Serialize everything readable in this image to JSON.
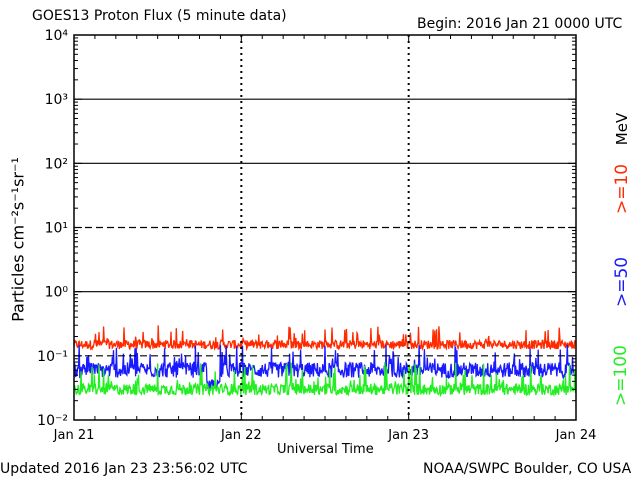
{
  "chart_data": {
    "type": "line",
    "title": "GOES13 Proton Flux (5 minute data)",
    "begin_label": "Begin: 2016 Jan 21 0000 UTC",
    "ylabel": "Particles cm⁻²s⁻¹sr⁻¹",
    "xlabel": "Universal Time",
    "unit_label": "MeV",
    "yscale": "log",
    "ylim": [
      0.01,
      10000
    ],
    "y_ticks": [
      "10⁻²",
      "10⁻¹",
      "10⁰",
      "10¹",
      "10²",
      "10³",
      "10⁴"
    ],
    "y_tick_values": [
      0.01,
      0.1,
      1,
      10,
      100,
      1000,
      10000
    ],
    "x_ticks": [
      "Jan 21",
      "Jan 22",
      "Jan 23",
      "Jan 24"
    ],
    "x_range_hours": [
      0,
      72
    ],
    "thresholds": [
      {
        "value": 10,
        "style": "dashed"
      },
      {
        "value": 1,
        "style": "solid"
      },
      {
        "value": 0.1,
        "style": "dashed"
      }
    ],
    "series": [
      {
        "name": ">=10",
        "color": "#ff2a00",
        "typical": 0.15,
        "min": 0.1,
        "max": 0.3
      },
      {
        "name": ">=50",
        "color": "#1a1aff",
        "typical": 0.06,
        "min": 0.03,
        "max": 0.15
      },
      {
        "name": ">=100",
        "color": "#22ee22",
        "typical": 0.03,
        "min": 0.018,
        "max": 0.08
      }
    ],
    "grid": true
  },
  "footer": {
    "updated": "Updated 2016 Jan 23 23:56:02 UTC",
    "source": "NOAA/SWPC Boulder, CO USA"
  }
}
